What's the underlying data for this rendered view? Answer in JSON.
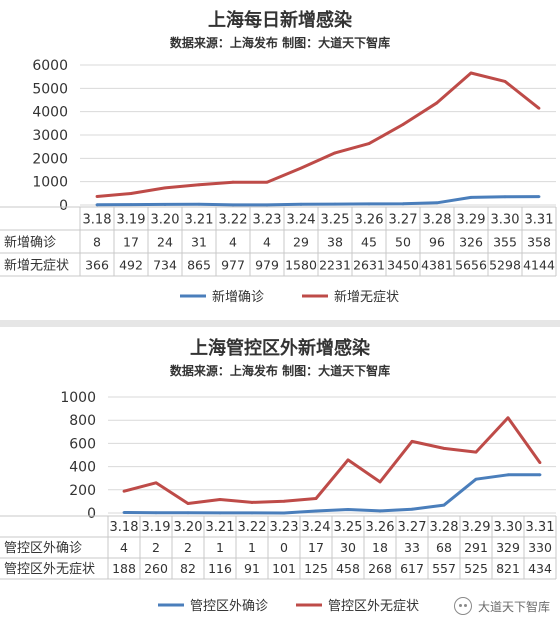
{
  "chart_data": [
    {
      "type": "line",
      "title": "上海每日新增感染",
      "subtitle": "数据来源：上海发布 制图：大道天下智库",
      "ylim": [
        0,
        6000
      ],
      "yticks": [
        0,
        1000,
        2000,
        3000,
        4000,
        5000,
        6000
      ],
      "grid": true,
      "legend_position": "bottom",
      "categories": [
        "3.18",
        "3.19",
        "3.20",
        "3.21",
        "3.22",
        "3.23",
        "3.24",
        "3.25",
        "3.26",
        "3.27",
        "3.28",
        "3.29",
        "3.30",
        "3.31"
      ],
      "series": [
        {
          "name": "新增确诊",
          "color": "#4a7ebb",
          "values": [
            8,
            17,
            24,
            31,
            4,
            4,
            29,
            38,
            45,
            50,
            96,
            326,
            355,
            358
          ]
        },
        {
          "name": "新增无症状",
          "color": "#be4b48",
          "values": [
            366,
            492,
            734,
            865,
            977,
            979,
            1580,
            2231,
            2631,
            3450,
            4381,
            5656,
            5298,
            4144
          ]
        }
      ]
    },
    {
      "type": "line",
      "title": "上海管控区外新增感染",
      "subtitle": "数据来源：上海发布 制图：大道天下智库",
      "ylim": [
        0,
        1000
      ],
      "yticks": [
        0,
        200,
        400,
        600,
        800,
        1000
      ],
      "grid": true,
      "legend_position": "bottom",
      "categories": [
        "3.18",
        "3.19",
        "3.20",
        "3.21",
        "3.22",
        "3.23",
        "3.24",
        "3.25",
        "3.26",
        "3.27",
        "3.28",
        "3.29",
        "3.30",
        "3.31"
      ],
      "series": [
        {
          "name": "管控区外确诊",
          "color": "#4a7ebb",
          "values": [
            4,
            2,
            2,
            1,
            1,
            0,
            17,
            30,
            18,
            33,
            68,
            291,
            329,
            330
          ]
        },
        {
          "name": "管控区外无症状",
          "color": "#be4b48",
          "values": [
            188,
            260,
            82,
            116,
            91,
            101,
            125,
            458,
            268,
            617,
            557,
            525,
            821,
            434
          ]
        }
      ]
    }
  ],
  "watermark": {
    "text": "大道天下智库",
    "icon": "wechat-icon"
  }
}
